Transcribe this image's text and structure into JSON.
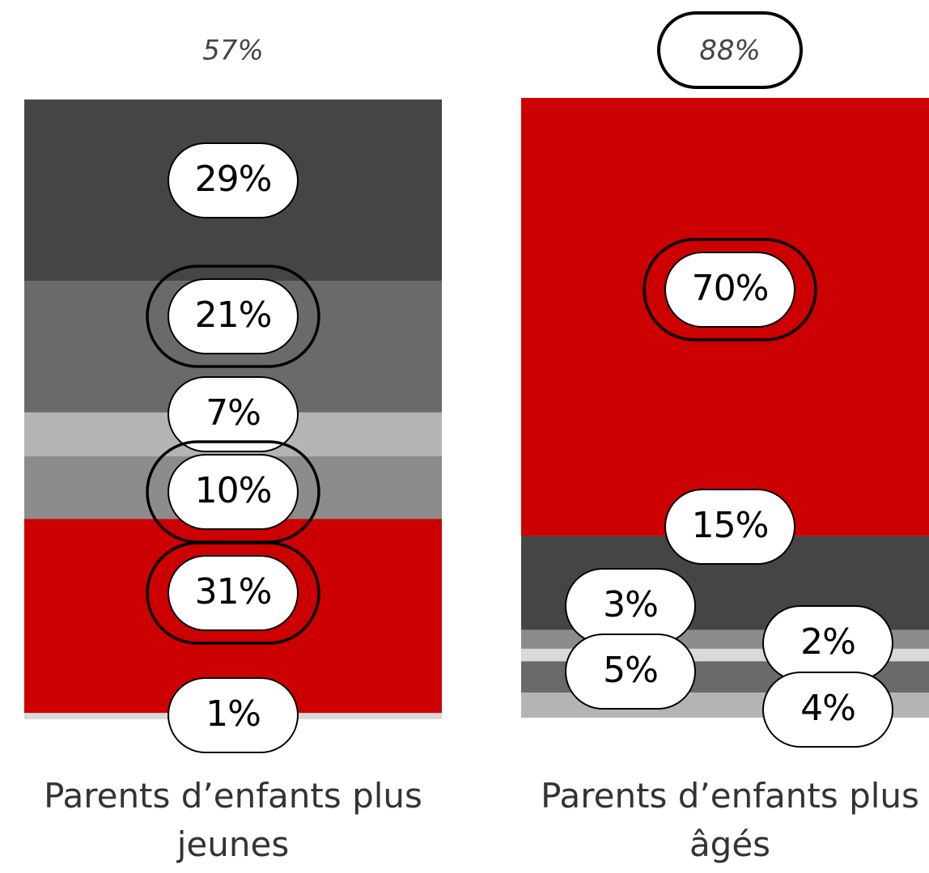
{
  "chart_data": {
    "type": "bar",
    "stacked": true,
    "categories": [
      "Parents d’enfants plus jeunes",
      "Parents d’enfants plus âgés"
    ],
    "category_lines": [
      [
        "Parents d’enfants plus",
        "jeunes"
      ],
      [
        "Parents d’enfants plus",
        "âgés"
      ]
    ],
    "top_labels": [
      "57%",
      "88%"
    ],
    "top_label_highlighted": [
      false,
      true
    ],
    "segments": [
      [
        {
          "value": 29,
          "label": "29%",
          "color": "#454545",
          "highlight": false
        },
        {
          "value": 21,
          "label": "21%",
          "color": "#6a6a6a",
          "highlight": true
        },
        {
          "value": 7,
          "label": "7%",
          "color": "#b4b4b4",
          "highlight": false
        },
        {
          "value": 10,
          "label": "10%",
          "color": "#8c8c8c",
          "highlight": true
        },
        {
          "value": 31,
          "label": "31%",
          "color": "#cc0000",
          "highlight": true
        },
        {
          "value": 1,
          "label": "1%",
          "color": "#d9d9d9",
          "highlight": false
        }
      ],
      [
        {
          "value": 70,
          "label": "70%",
          "color": "#cc0000",
          "highlight": true
        },
        {
          "value": 15,
          "label": "15%",
          "color": "#454545",
          "highlight": false
        },
        {
          "value": 3,
          "label": "3%",
          "color": "#8c8c8c",
          "highlight": false
        },
        {
          "value": 2,
          "label": "2%",
          "color": "#d9d9d9",
          "highlight": false
        },
        {
          "value": 5,
          "label": "5%",
          "color": "#6a6a6a",
          "highlight": false
        },
        {
          "value": 4,
          "label": "4%",
          "color": "#b4b4b4",
          "highlight": false
        }
      ]
    ]
  }
}
